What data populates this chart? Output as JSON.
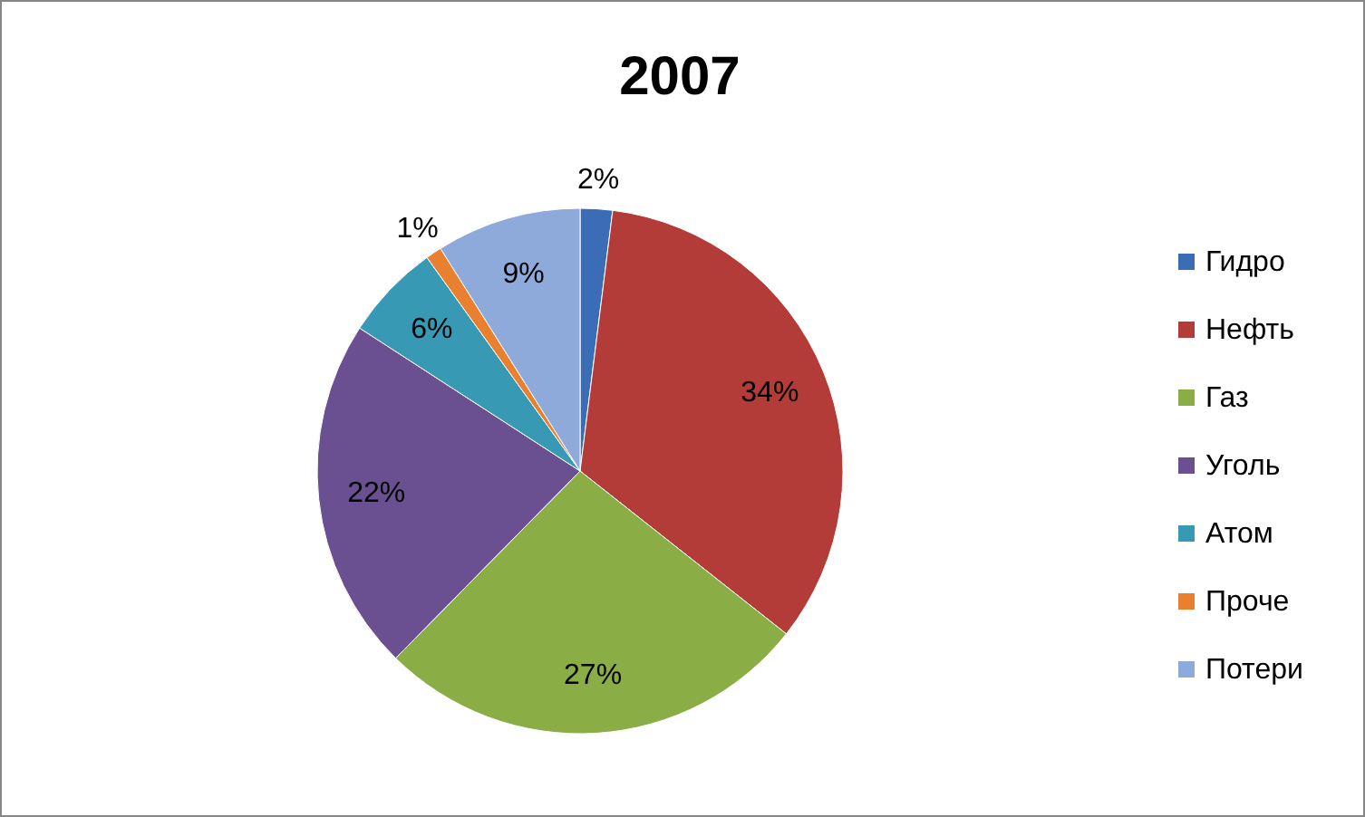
{
  "chart_data": {
    "type": "pie",
    "title": "2007",
    "categories": [
      "Гидро",
      "Нефть",
      "Газ",
      "Уголь",
      "Атом",
      "Проче",
      "Потери"
    ],
    "values": [
      2,
      34,
      27,
      22,
      6,
      1,
      9
    ],
    "value_labels": [
      "2%",
      "34%",
      "27%",
      "22%",
      "6%",
      "1%",
      "9%"
    ],
    "colors": [
      "#3a6db5",
      "#b33c38",
      "#8aad45",
      "#6a4f91",
      "#3799b3",
      "#e8802f",
      "#8eaadb"
    ],
    "legend": "right"
  }
}
